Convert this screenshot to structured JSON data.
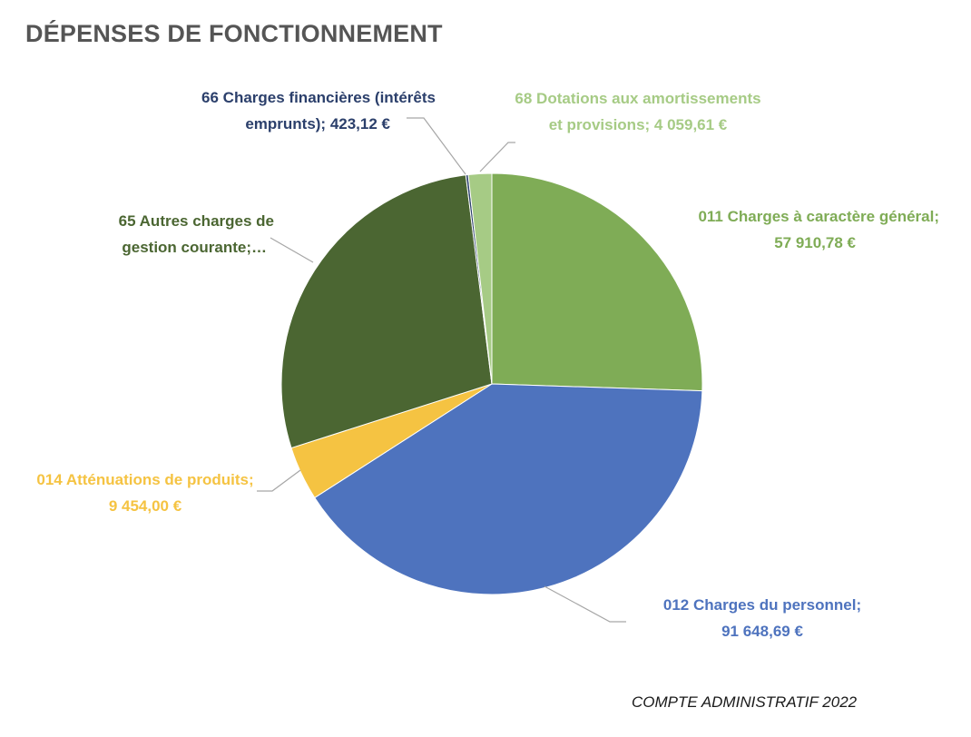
{
  "header": {
    "title": "DÉPENSES DE FONCTIONNEMENT"
  },
  "footer": {
    "text": "COMPTE ADMINISTRATIF 2022"
  },
  "chart_data": {
    "type": "pie",
    "title": "DÉPENSES DE FONCTIONNEMENT",
    "legend": "none",
    "start_angle": "12 o'clock, clockwise",
    "slices": [
      {
        "key": "s011",
        "name": "011 Charges à caractère général",
        "value": 57910.78,
        "color": "#7FAC56",
        "label_lines": [
          "011 Charges à caractère général;",
          "57 910,78  €"
        ]
      },
      {
        "key": "s012",
        "name": "012 Charges du personnel",
        "value": 91648.69,
        "color": "#4E73BE",
        "label_lines": [
          "012 Charges du personnel;",
          "91 648,69  €"
        ]
      },
      {
        "key": "s014",
        "name": "014 Atténuations de produits",
        "value": 9454.0,
        "color": "#F5C342",
        "label_lines": [
          "014 Atténuations de produits;",
          "9 454,00  €"
        ]
      },
      {
        "key": "s65",
        "name": "65 Autres charges de gestion courante",
        "value": 63400,
        "color": "#4B6632",
        "label_lines": [
          "65 Autres charges de",
          "gestion courante;…"
        ]
      },
      {
        "key": "s66",
        "name": "66 Charges financières (intérêts emprunts)",
        "value": 423.12,
        "color": "#2B3F6B",
        "label_lines": [
          "66 Charges financières (intérêts",
          "emprunts);  423,12  €"
        ]
      },
      {
        "key": "s68",
        "name": "68 Dotations aux amortissements et provisions",
        "value": 4059.61,
        "color": "#A6CB85",
        "label_lines": [
          "68 Dotations aux amortissements",
          "et provisions;  4 059,61  €"
        ]
      }
    ]
  }
}
